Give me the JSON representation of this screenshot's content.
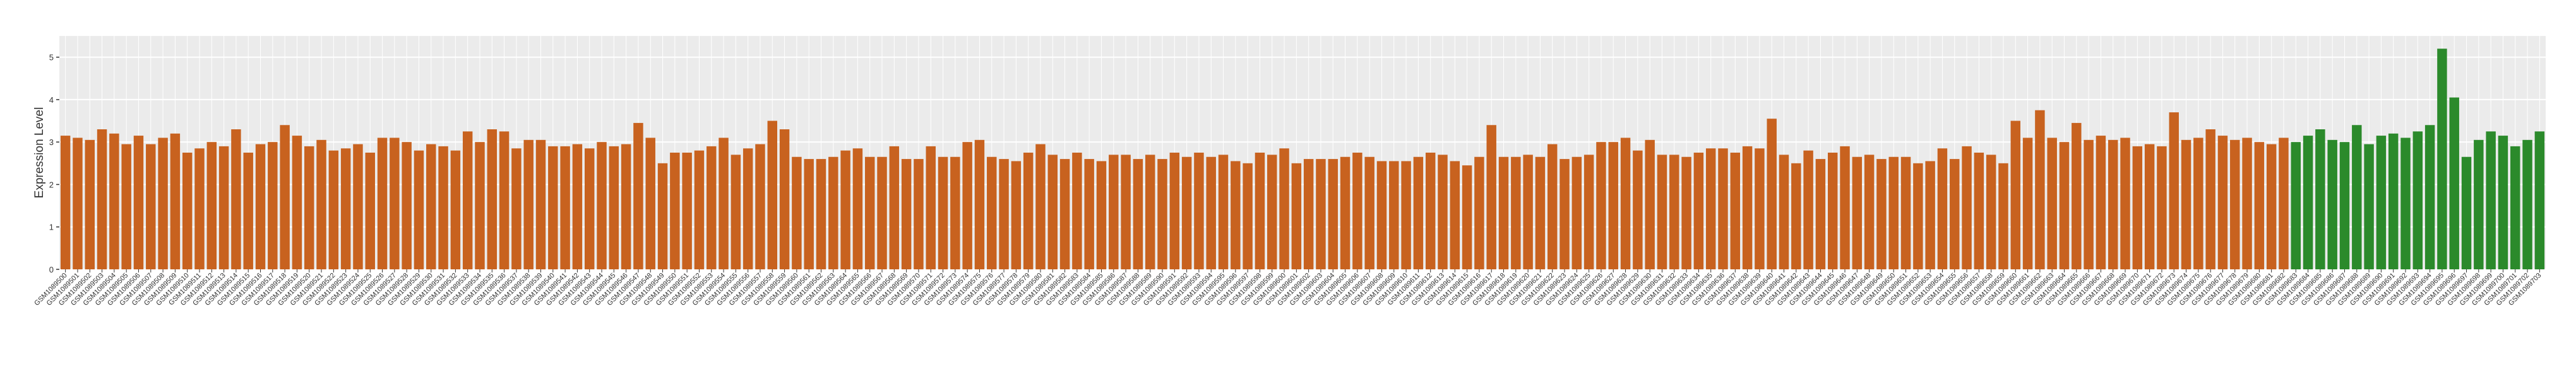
{
  "chart_data": {
    "type": "bar",
    "ylabel": "Expression Level",
    "ylim": [
      0,
      5.5
    ],
    "yticks": [
      0,
      1,
      2,
      3,
      4,
      5
    ],
    "grid": true,
    "categories": [
      "GSM1089500",
      "GSM1089501",
      "GSM1089502",
      "GSM1089503",
      "GSM1089504",
      "GSM1089505",
      "GSM1089506",
      "GSM1089507",
      "GSM1089508",
      "GSM1089509",
      "GSM1089510",
      "GSM1089511",
      "GSM1089512",
      "GSM1089513",
      "GSM1089514",
      "GSM1089515",
      "GSM1089516",
      "GSM1089517",
      "GSM1089518",
      "GSM1089519",
      "GSM1089520",
      "GSM1089521",
      "GSM1089522",
      "GSM1089523",
      "GSM1089524",
      "GSM1089525",
      "GSM1089526",
      "GSM1089527",
      "GSM1089528",
      "GSM1089529",
      "GSM1089530",
      "GSM1089531",
      "GSM1089532",
      "GSM1089533",
      "GSM1089534",
      "GSM1089535",
      "GSM1089536",
      "GSM1089537",
      "GSM1089538",
      "GSM1089539",
      "GSM1089540",
      "GSM1089541",
      "GSM1089542",
      "GSM1089543",
      "GSM1089544",
      "GSM1089545",
      "GSM1089546",
      "GSM1089547",
      "GSM1089548",
      "GSM1089549",
      "GSM1089550",
      "GSM1089551",
      "GSM1089552",
      "GSM1089553",
      "GSM1089554",
      "GSM1089555",
      "GSM1089556",
      "GSM1089557",
      "GSM1089558",
      "GSM1089559",
      "GSM1089560",
      "GSM1089561",
      "GSM1089562",
      "GSM1089563",
      "GSM1089564",
      "GSM1089565",
      "GSM1089566",
      "GSM1089567",
      "GSM1089568",
      "GSM1089569",
      "GSM1089570",
      "GSM1089571",
      "GSM1089572",
      "GSM1089573",
      "GSM1089574",
      "GSM1089575",
      "GSM1089576",
      "GSM1089577",
      "GSM1089578",
      "GSM1089579",
      "GSM1089580",
      "GSM1089581",
      "GSM1089582",
      "GSM1089583",
      "GSM1089584",
      "GSM1089585",
      "GSM1089586",
      "GSM1089587",
      "GSM1089588",
      "GSM1089589",
      "GSM1089590",
      "GSM1089591",
      "GSM1089592",
      "GSM1089593",
      "GSM1089594",
      "GSM1089595",
      "GSM1089596",
      "GSM1089597",
      "GSM1089598",
      "GSM1089599",
      "GSM1089600",
      "GSM1089601",
      "GSM1089602",
      "GSM1089603",
      "GSM1089604",
      "GSM1089605",
      "GSM1089606",
      "GSM1089607",
      "GSM1089608",
      "GSM1089609",
      "GSM1089610",
      "GSM1089611",
      "GSM1089612",
      "GSM1089613",
      "GSM1089614",
      "GSM1089615",
      "GSM1089616",
      "GSM1089617",
      "GSM1089618",
      "GSM1089619",
      "GSM1089620",
      "GSM1089621",
      "GSM1089622",
      "GSM1089623",
      "GSM1089624",
      "GSM1089625",
      "GSM1089626",
      "GSM1089627",
      "GSM1089628",
      "GSM1089629",
      "GSM1089630",
      "GSM1089631",
      "GSM1089632",
      "GSM1089633",
      "GSM1089634",
      "GSM1089635",
      "GSM1089636",
      "GSM1089637",
      "GSM1089638",
      "GSM1089639",
      "GSM1089640",
      "GSM1089641",
      "GSM1089642",
      "GSM1089643",
      "GSM1089644",
      "GSM1089645",
      "GSM1089646",
      "GSM1089647",
      "GSM1089648",
      "GSM1089649",
      "GSM1089650",
      "GSM1089651",
      "GSM1089652",
      "GSM1089653",
      "GSM1089654",
      "GSM1089655",
      "GSM1089656",
      "GSM1089657",
      "GSM1089658",
      "GSM1089659",
      "GSM1089660",
      "GSM1089661",
      "GSM1089662",
      "GSM1089663",
      "GSM1089664",
      "GSM1089665",
      "GSM1089666",
      "GSM1089667",
      "GSM1089668",
      "GSM1089669",
      "GSM1089670",
      "GSM1089671",
      "GSM1089672",
      "GSM1089673",
      "GSM1089674",
      "GSM1089675",
      "GSM1089676",
      "GSM1089677",
      "GSM1089678",
      "GSM1089679",
      "GSM1089680",
      "GSM1089681",
      "GSM1089682",
      "GSM1089683",
      "GSM1089684",
      "GSM1089685",
      "GSM1089686",
      "GSM1089687",
      "GSM1089688",
      "GSM1089689",
      "GSM1089690",
      "GSM1089691",
      "GSM1089692",
      "GSM1089693",
      "GSM1089694",
      "GSM1089695",
      "GSM1089696",
      "GSM1089697",
      "GSM1089698",
      "GSM1089699",
      "GSM1089700",
      "GSM1089701",
      "GSM1089702",
      "GSM1089703"
    ],
    "values": [
      3.15,
      3.1,
      3.05,
      3.3,
      3.2,
      2.95,
      3.15,
      2.95,
      3.1,
      3.2,
      2.75,
      2.85,
      3.0,
      2.9,
      3.3,
      2.75,
      2.95,
      3.0,
      3.4,
      3.15,
      2.9,
      3.05,
      2.8,
      2.85,
      2.95,
      2.75,
      3.1,
      3.1,
      3.0,
      2.8,
      2.95,
      2.9,
      2.8,
      3.25,
      3.0,
      3.3,
      3.25,
      2.85,
      3.05,
      3.05,
      2.9,
      2.9,
      2.95,
      2.85,
      3.0,
      2.9,
      2.95,
      3.45,
      3.1,
      2.5,
      2.75,
      2.75,
      2.8,
      2.9,
      3.1,
      2.7,
      2.85,
      2.95,
      3.5,
      3.3,
      2.65,
      2.6,
      2.6,
      2.65,
      2.8,
      2.85,
      2.65,
      2.65,
      2.9,
      2.6,
      2.6,
      2.9,
      2.65,
      2.65,
      3.0,
      3.05,
      2.65,
      2.6,
      2.55,
      2.75,
      2.95,
      2.7,
      2.6,
      2.75,
      2.6,
      2.55,
      2.7,
      2.7,
      2.6,
      2.7,
      2.6,
      2.75,
      2.65,
      2.75,
      2.65,
      2.7,
      2.55,
      2.5,
      2.75,
      2.7,
      2.85,
      2.5,
      2.6,
      2.6,
      2.6,
      2.65,
      2.75,
      2.65,
      2.55,
      2.55,
      2.55,
      2.65,
      2.75,
      2.7,
      2.55,
      2.45,
      2.65,
      3.4,
      2.65,
      2.65,
      2.7,
      2.65,
      2.95,
      2.6,
      2.65,
      2.7,
      3.0,
      3.0,
      3.1,
      2.8,
      3.05,
      2.7,
      2.7,
      2.65,
      2.75,
      2.85,
      2.85,
      2.75,
      2.9,
      2.85,
      3.55,
      2.7,
      2.5,
      2.8,
      2.6,
      2.75,
      2.9,
      2.65,
      2.7,
      2.6,
      2.65,
      2.65,
      2.5,
      2.55,
      2.85,
      2.6,
      2.9,
      2.75,
      2.7,
      2.5,
      3.5,
      3.1,
      3.75,
      3.1,
      3.0,
      3.45,
      3.05,
      3.15,
      3.05,
      3.1,
      2.9,
      2.95,
      2.9,
      3.7,
      3.05,
      3.1,
      3.3,
      3.15,
      3.05,
      3.1,
      3.0,
      2.95,
      3.1,
      3.0,
      3.15,
      3.3,
      3.05,
      3.0,
      3.4,
      2.95,
      3.15,
      3.2,
      3.1,
      3.25,
      3.4,
      5.2,
      4.05,
      2.65,
      3.05,
      3.25,
      3.15,
      2.9,
      3.05,
      3.25
    ],
    "colors": [
      "#c8621f",
      "#c8621f",
      "#c8621f",
      "#c8621f",
      "#c8621f",
      "#c8621f",
      "#c8621f",
      "#c8621f",
      "#c8621f",
      "#c8621f",
      "#c8621f",
      "#c8621f",
      "#c8621f",
      "#c8621f",
      "#c8621f",
      "#c8621f",
      "#c8621f",
      "#c8621f",
      "#c8621f",
      "#c8621f",
      "#c8621f",
      "#c8621f",
      "#c8621f",
      "#c8621f",
      "#c8621f",
      "#c8621f",
      "#c8621f",
      "#c8621f",
      "#c8621f",
      "#c8621f",
      "#c8621f",
      "#c8621f",
      "#c8621f",
      "#c8621f",
      "#c8621f",
      "#c8621f",
      "#c8621f",
      "#c8621f",
      "#c8621f",
      "#c8621f",
      "#c8621f",
      "#c8621f",
      "#c8621f",
      "#c8621f",
      "#c8621f",
      "#c8621f",
      "#c8621f",
      "#c8621f",
      "#c8621f",
      "#c8621f",
      "#c8621f",
      "#c8621f",
      "#c8621f",
      "#c8621f",
      "#c8621f",
      "#c8621f",
      "#c8621f",
      "#c8621f",
      "#c8621f",
      "#c8621f",
      "#c8621f",
      "#c8621f",
      "#c8621f",
      "#c8621f",
      "#c8621f",
      "#c8621f",
      "#c8621f",
      "#c8621f",
      "#c8621f",
      "#c8621f",
      "#c8621f",
      "#c8621f",
      "#c8621f",
      "#c8621f",
      "#c8621f",
      "#c8621f",
      "#c8621f",
      "#c8621f",
      "#c8621f",
      "#c8621f",
      "#c8621f",
      "#c8621f",
      "#c8621f",
      "#c8621f",
      "#c8621f",
      "#c8621f",
      "#c8621f",
      "#c8621f",
      "#c8621f",
      "#c8621f",
      "#c8621f",
      "#c8621f",
      "#c8621f",
      "#c8621f",
      "#c8621f",
      "#c8621f",
      "#c8621f",
      "#c8621f",
      "#c8621f",
      "#c8621f",
      "#c8621f",
      "#c8621f",
      "#c8621f",
      "#c8621f",
      "#c8621f",
      "#c8621f",
      "#c8621f",
      "#c8621f",
      "#c8621f",
      "#c8621f",
      "#c8621f",
      "#c8621f",
      "#c8621f",
      "#c8621f",
      "#c8621f",
      "#c8621f",
      "#c8621f",
      "#c8621f",
      "#c8621f",
      "#c8621f",
      "#c8621f",
      "#c8621f",
      "#c8621f",
      "#c8621f",
      "#c8621f",
      "#c8621f",
      "#c8621f",
      "#c8621f",
      "#c8621f",
      "#c8621f",
      "#c8621f",
      "#c8621f",
      "#c8621f",
      "#c8621f",
      "#c8621f",
      "#c8621f",
      "#c8621f",
      "#c8621f",
      "#c8621f",
      "#c8621f",
      "#c8621f",
      "#c8621f",
      "#c8621f",
      "#c8621f",
      "#c8621f",
      "#c8621f",
      "#c8621f",
      "#c8621f",
      "#c8621f",
      "#c8621f",
      "#c8621f",
      "#c8621f",
      "#c8621f",
      "#c8621f",
      "#c8621f",
      "#c8621f",
      "#c8621f",
      "#c8621f",
      "#c8621f",
      "#c8621f",
      "#c8621f",
      "#c8621f",
      "#c8621f",
      "#c8621f",
      "#c8621f",
      "#c8621f",
      "#c8621f",
      "#c8621f",
      "#c8621f",
      "#c8621f",
      "#c8621f",
      "#c8621f",
      "#c8621f",
      "#c8621f",
      "#c8621f",
      "#c8621f",
      "#c8621f",
      "#c8621f",
      "#c8621f",
      "#c8621f",
      "#c8621f",
      "#c8621f",
      "#c8621f",
      "#2b8a2b",
      "#2b8a2b",
      "#2b8a2b",
      "#2b8a2b",
      "#2b8a2b",
      "#2b8a2b",
      "#2b8a2b",
      "#2b8a2b",
      "#2b8a2b",
      "#2b8a2b",
      "#2b8a2b",
      "#2b8a2b",
      "#2b8a2b",
      "#2b8a2b",
      "#2b8a2b",
      "#2b8a2b",
      "#2b8a2b",
      "#2b8a2b",
      "#2b8a2b",
      "#2b8a2b",
      "#2b8a2b"
    ]
  }
}
